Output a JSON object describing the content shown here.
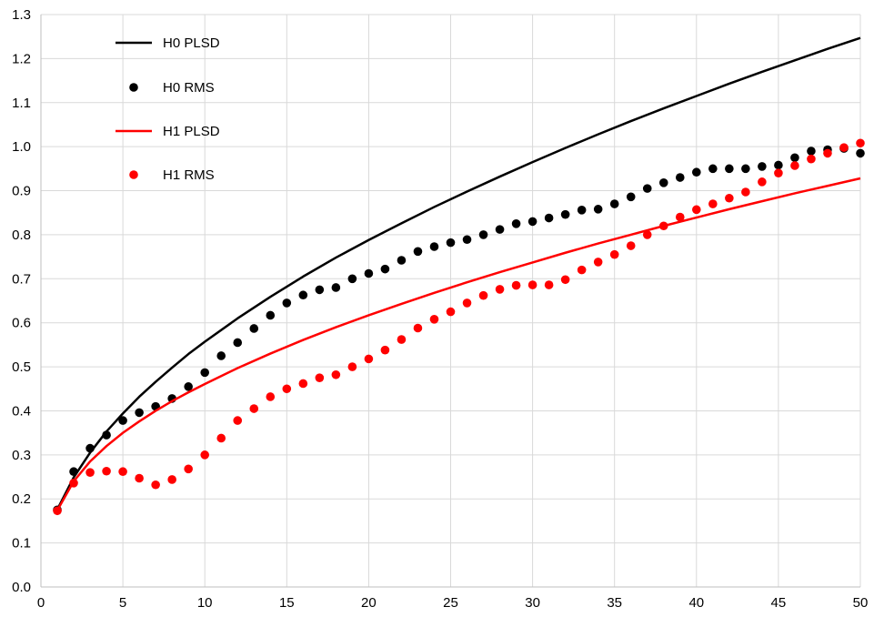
{
  "chart_data": {
    "type": "line",
    "title": "",
    "xlabel": "",
    "ylabel": "",
    "xlim": [
      0,
      50
    ],
    "ylim": [
      0.0,
      1.3
    ],
    "grid": "vertical and horizontal",
    "legend_position": "top-left",
    "x_ticks": [
      "0",
      "5",
      "10",
      "15",
      "20",
      "25",
      "30",
      "35",
      "40",
      "45",
      "50"
    ],
    "y_ticks": [
      "0.0",
      "0.1",
      "0.2",
      "0.3",
      "0.4",
      "0.5",
      "0.6",
      "0.7",
      "0.8",
      "0.9",
      "1.0",
      "1.1",
      "1.2",
      "1.3"
    ],
    "series": [
      {
        "name": "H0 PLSD",
        "style": "line",
        "color": "#000000",
        "x": [
          1,
          2,
          3,
          4,
          5,
          6,
          7,
          8,
          9,
          10,
          12,
          14,
          16,
          18,
          20,
          22,
          24,
          26,
          28,
          30,
          32,
          34,
          36,
          38,
          40,
          42,
          44,
          46,
          48,
          50
        ],
        "y": [
          0.176,
          0.249,
          0.305,
          0.353,
          0.394,
          0.432,
          0.466,
          0.498,
          0.529,
          0.557,
          0.61,
          0.659,
          0.705,
          0.748,
          0.788,
          0.826,
          0.863,
          0.898,
          0.932,
          0.965,
          0.997,
          1.028,
          1.058,
          1.087,
          1.115,
          1.143,
          1.17,
          1.196,
          1.222,
          1.247
        ]
      },
      {
        "name": "H0 RMS",
        "style": "markers",
        "color": "#000000",
        "x": [
          1,
          2,
          3,
          4,
          5,
          6,
          7,
          8,
          9,
          10,
          11,
          12,
          13,
          14,
          15,
          16,
          17,
          18,
          19,
          20,
          21,
          22,
          23,
          24,
          25,
          26,
          27,
          28,
          29,
          30,
          31,
          32,
          33,
          34,
          35,
          36,
          37,
          38,
          39,
          40,
          41,
          42,
          43,
          44,
          45,
          46,
          47,
          48,
          49,
          50
        ],
        "y": [
          0.175,
          0.262,
          0.315,
          0.345,
          0.378,
          0.396,
          0.41,
          0.428,
          0.455,
          0.487,
          0.525,
          0.555,
          0.587,
          0.617,
          0.645,
          0.663,
          0.675,
          0.68,
          0.7,
          0.712,
          0.722,
          0.742,
          0.762,
          0.773,
          0.782,
          0.789,
          0.8,
          0.812,
          0.825,
          0.83,
          0.838,
          0.846,
          0.856,
          0.858,
          0.87,
          0.886,
          0.905,
          0.918,
          0.93,
          0.942,
          0.95,
          0.95,
          0.95,
          0.955,
          0.958,
          0.975,
          0.99,
          0.993,
          0.996,
          0.985
        ]
      },
      {
        "name": "H1 PLSD",
        "style": "line",
        "color": "#ff0000",
        "x": [
          1,
          2,
          3,
          4,
          5,
          6,
          7,
          8,
          9,
          10,
          12,
          14,
          16,
          18,
          20,
          22,
          24,
          26,
          28,
          30,
          32,
          34,
          36,
          38,
          40,
          42,
          44,
          46,
          48,
          50
        ],
        "y": [
          0.174,
          0.24,
          0.285,
          0.32,
          0.35,
          0.376,
          0.4,
          0.422,
          0.442,
          0.461,
          0.497,
          0.53,
          0.561,
          0.59,
          0.617,
          0.643,
          0.668,
          0.692,
          0.715,
          0.737,
          0.759,
          0.78,
          0.8,
          0.82,
          0.839,
          0.858,
          0.876,
          0.894,
          0.911,
          0.928
        ]
      },
      {
        "name": "H1 RMS",
        "style": "markers",
        "color": "#ff0000",
        "x": [
          1,
          2,
          3,
          4,
          5,
          6,
          7,
          8,
          9,
          10,
          11,
          12,
          13,
          14,
          15,
          16,
          17,
          18,
          19,
          20,
          21,
          22,
          23,
          24,
          25,
          26,
          27,
          28,
          29,
          30,
          31,
          32,
          33,
          34,
          35,
          36,
          37,
          38,
          39,
          40,
          41,
          42,
          43,
          44,
          45,
          46,
          47,
          48,
          49,
          50
        ],
        "y": [
          0.173,
          0.236,
          0.26,
          0.263,
          0.262,
          0.247,
          0.232,
          0.244,
          0.268,
          0.3,
          0.338,
          0.378,
          0.405,
          0.432,
          0.45,
          0.462,
          0.475,
          0.482,
          0.5,
          0.518,
          0.538,
          0.562,
          0.588,
          0.608,
          0.625,
          0.645,
          0.662,
          0.676,
          0.685,
          0.686,
          0.686,
          0.698,
          0.72,
          0.738,
          0.755,
          0.775,
          0.8,
          0.82,
          0.84,
          0.857,
          0.87,
          0.883,
          0.897,
          0.92,
          0.94,
          0.957,
          0.972,
          0.985,
          0.998,
          1.008
        ]
      }
    ]
  }
}
